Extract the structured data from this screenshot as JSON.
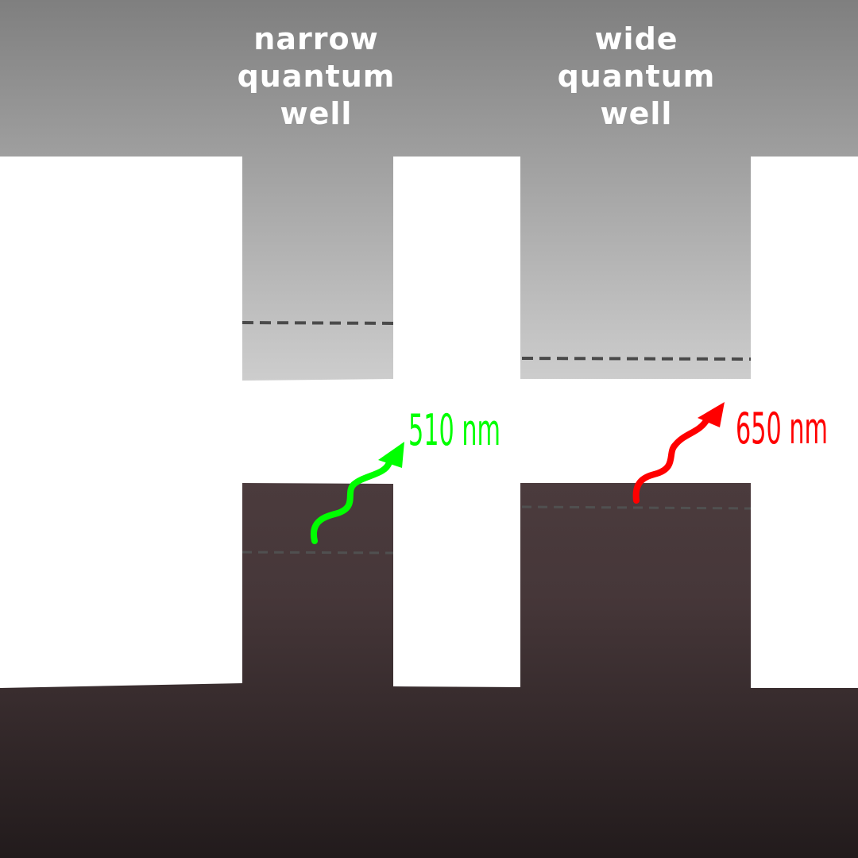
{
  "wells": [
    {
      "label_lines": [
        "narrow",
        "quantum",
        "well"
      ],
      "emission": {
        "wavelength": "510 nm",
        "color": "#00ff00"
      }
    },
    {
      "label_lines": [
        "wide",
        "quantum",
        "well"
      ],
      "emission": {
        "wavelength": "650 nm",
        "color": "#ff0000"
      }
    }
  ],
  "colors": {
    "conduction_band_top": "#808080",
    "conduction_band_bottom": "#cccccc",
    "valence_band_top": "#4a3a3c",
    "valence_band_bottom": "#231c1d",
    "energy_level_dash": "#4a4a4a",
    "background": "#ffffff"
  }
}
